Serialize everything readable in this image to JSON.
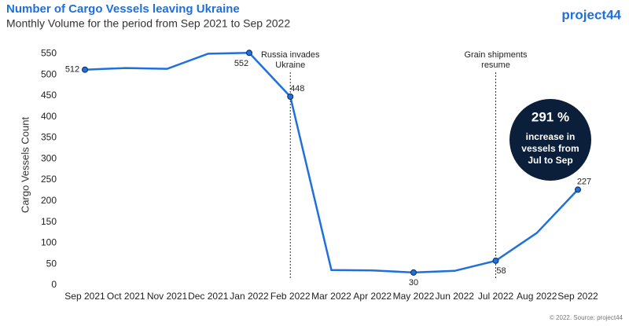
{
  "chart_data": {
    "type": "line",
    "title": "Number of Cargo Vessels leaving Ukraine",
    "subtitle": "Monthly Volume for the period from Sep 2021 to Sep 2022",
    "brand": "project44",
    "footer": "© 2022. Source: project44",
    "y_label": "Cargo Vessels Count",
    "categories": [
      "Sep 2021",
      "Oct 2021",
      "Nov 2021",
      "Dec 2021",
      "Jan 2022",
      "Feb 2022",
      "Mar 2022",
      "Apr 2022",
      "May 2022",
      "Jun 2022",
      "Jul 2022",
      "Aug 2022",
      "Sep 2022"
    ],
    "series": [
      {
        "name": "Cargo Vessels",
        "color": "#1f6fdc",
        "values": [
          512,
          516,
          514,
          550,
          552,
          448,
          36,
          35,
          30,
          34,
          58,
          124,
          227
        ],
        "markers": [
          true,
          false,
          false,
          false,
          true,
          true,
          false,
          false,
          true,
          false,
          true,
          false,
          true
        ]
      }
    ],
    "ylim": [
      0,
      560
    ],
    "yticks": [
      0,
      50,
      100,
      150,
      200,
      250,
      300,
      350,
      400,
      450,
      500,
      550
    ],
    "grid": false,
    "annotations": [
      {
        "x": "Feb 2022",
        "text": [
          "Russia invades",
          "Ukraine"
        ]
      },
      {
        "x": "Jul 2022",
        "text": [
          "Grain shipments",
          "resume"
        ]
      }
    ],
    "callout": [
      "291 %",
      "increase in",
      "vessels from",
      "Jul to Sep"
    ]
  }
}
